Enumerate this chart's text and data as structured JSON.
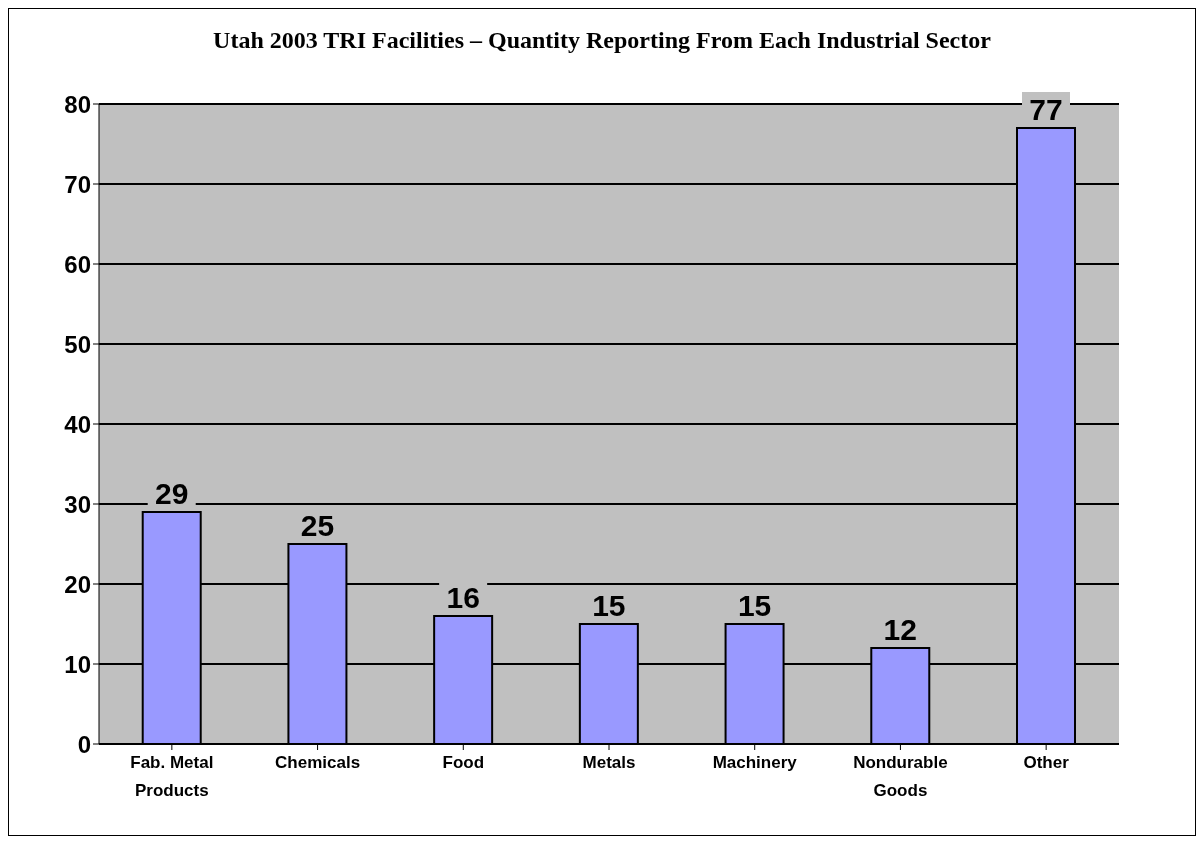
{
  "chart_data": {
    "type": "bar",
    "title": "Utah 2003 TRI Facilities – Quantity Reporting From Each Industrial Sector",
    "categories": [
      "Fab. Metal Products",
      "Chemicals",
      "Food",
      "Metals",
      "Machinery",
      "Nondurable Goods",
      "Other"
    ],
    "values": [
      29,
      25,
      16,
      15,
      15,
      12,
      77
    ],
    "color": "#9999ff",
    "ylim": [
      0,
      80
    ],
    "yticks": [
      0,
      10,
      20,
      30,
      40,
      50,
      60,
      70,
      80
    ],
    "grid": "y",
    "data_labels": true
  }
}
